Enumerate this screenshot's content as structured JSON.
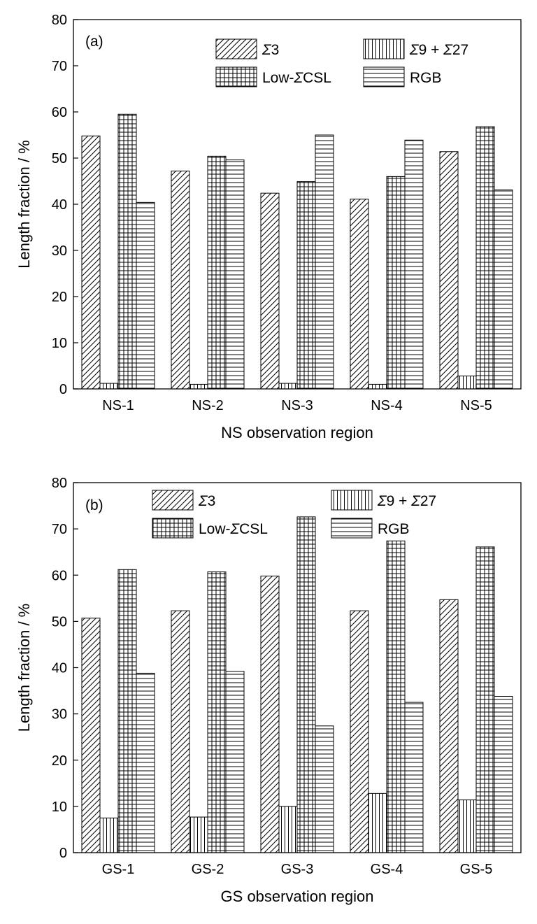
{
  "chart_data": [
    {
      "type": "bar",
      "panel_label": "(a)",
      "categories": [
        "NS-1",
        "NS-2",
        "NS-3",
        "NS-4",
        "NS-5"
      ],
      "series": [
        {
          "name": "Σ3",
          "pattern": "diagonal-hatch",
          "values": [
            54.8,
            47.2,
            42.4,
            41.1,
            51.4
          ]
        },
        {
          "name": "Σ9 + Σ27",
          "pattern": "vertical-hatch",
          "values": [
            1.2,
            1.0,
            1.2,
            1.0,
            2.8
          ]
        },
        {
          "name": "Low-ΣCSL",
          "pattern": "grid-hatch",
          "values": [
            59.5,
            50.4,
            44.9,
            46.0,
            56.8
          ]
        },
        {
          "name": "RGB",
          "pattern": "horizontal-hatch",
          "values": [
            40.4,
            49.6,
            55.0,
            53.9,
            43.1
          ]
        }
      ],
      "xlabel": "NS observation region",
      "ylabel": "Length fraction / %",
      "ylim": [
        0,
        80
      ],
      "yticks": [
        0,
        10,
        20,
        30,
        40,
        50,
        60,
        70,
        80
      ],
      "grid": false,
      "legend_position": "top",
      "legend_columns": 2
    },
    {
      "type": "bar",
      "panel_label": "(b)",
      "categories": [
        "GS-1",
        "GS-2",
        "GS-3",
        "GS-4",
        "GS-5"
      ],
      "series": [
        {
          "name": "Σ3",
          "pattern": "diagonal-hatch",
          "values": [
            50.7,
            52.3,
            59.8,
            52.3,
            54.7
          ]
        },
        {
          "name": "Σ9 + Σ27",
          "pattern": "vertical-hatch",
          "values": [
            7.5,
            7.7,
            10.0,
            12.8,
            11.4
          ]
        },
        {
          "name": "Low-ΣCSL",
          "pattern": "grid-hatch",
          "values": [
            61.2,
            60.7,
            72.6,
            67.4,
            66.1
          ]
        },
        {
          "name": "RGB",
          "pattern": "horizontal-hatch",
          "values": [
            38.8,
            39.2,
            27.4,
            32.5,
            33.8
          ]
        }
      ],
      "xlabel": "GS observation region",
      "ylabel": "Length fraction / %",
      "ylim": [
        0,
        80
      ],
      "yticks": [
        0,
        10,
        20,
        30,
        40,
        50,
        60,
        70,
        80
      ],
      "grid": false,
      "legend_position": "top",
      "legend_columns": 2
    }
  ]
}
